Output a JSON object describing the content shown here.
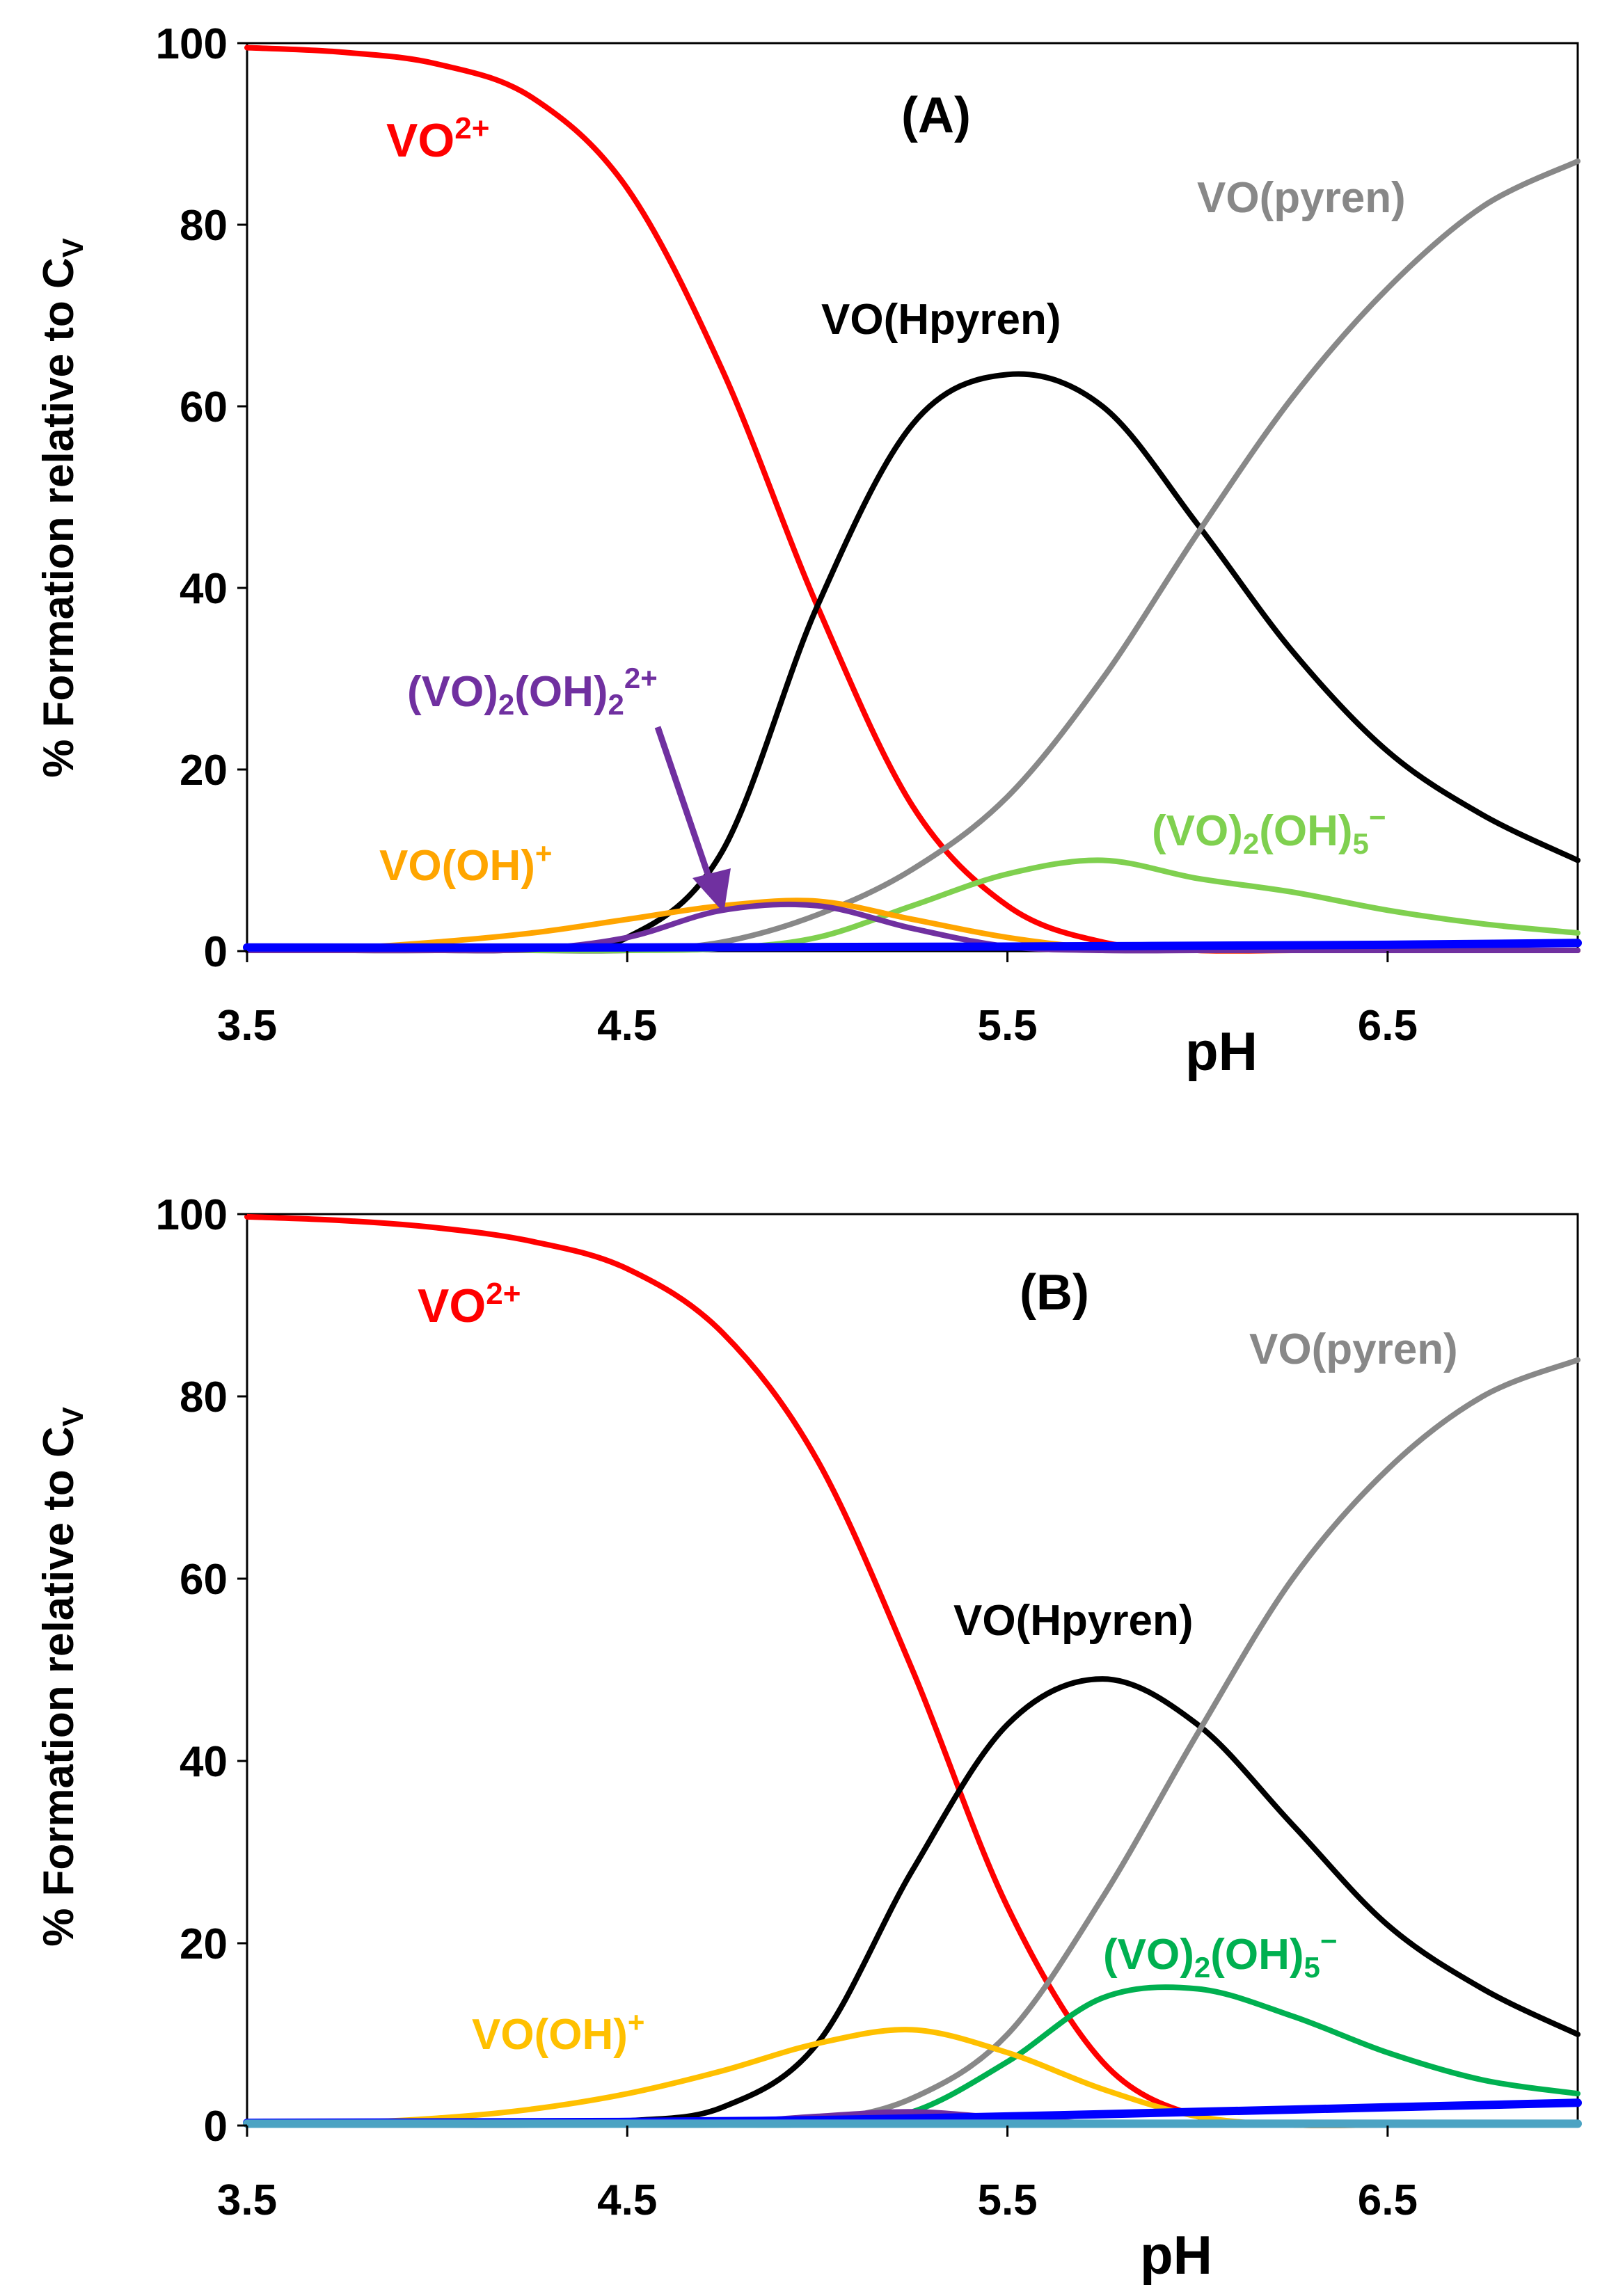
{
  "chart_data": [
    {
      "type": "line",
      "title": "(A)",
      "xlabel": "pH",
      "ylabel": "% Formation relative to C",
      "ylabel_subscript": "V",
      "xlim": [
        3.5,
        7.0
      ],
      "ylim": [
        0,
        100
      ],
      "xticks": [
        "3.5",
        "4.5",
        "5.5",
        "6.5"
      ],
      "yticks": [
        "0",
        "20",
        "40",
        "60",
        "80",
        "100"
      ],
      "series": [
        {
          "name": "VO2+",
          "label_main": "VO",
          "label_sup": "2+",
          "color": "#ff0000",
          "x": [
            3.5,
            3.75,
            4.0,
            4.25,
            4.5,
            4.75,
            5.0,
            5.25,
            5.5,
            5.75,
            6.0,
            6.25,
            6.5,
            6.75,
            7.0
          ],
          "y": [
            99.5,
            99,
            97.7,
            94,
            84,
            64,
            38,
            16,
            5,
            1,
            0,
            0,
            0,
            0,
            0
          ]
        },
        {
          "name": "VO(Hpyren)",
          "label_main": "VO(Hpyren)",
          "color": "#000000",
          "x": [
            3.5,
            3.75,
            4.0,
            4.25,
            4.5,
            4.75,
            5.0,
            5.25,
            5.5,
            5.75,
            6.0,
            6.25,
            6.5,
            6.75,
            7.0
          ],
          "y": [
            0,
            0,
            0,
            0.2,
            1.5,
            11,
            38,
            58,
            63.5,
            60,
            47,
            33,
            22,
            15,
            10
          ]
        },
        {
          "name": "VO(pyren)",
          "label_main": "VO(pyren)",
          "color": "#888888",
          "x": [
            3.5,
            3.75,
            4.0,
            4.25,
            4.5,
            4.75,
            5.0,
            5.25,
            5.5,
            5.75,
            6.0,
            6.25,
            6.5,
            6.75,
            7.0
          ],
          "y": [
            0,
            0,
            0,
            0,
            0,
            1,
            4,
            9,
            17,
            30,
            46,
            61,
            73,
            82,
            87
          ]
        },
        {
          "name": "(VO)2(OH)5-",
          "label_main": "(VO)",
          "label_sub": "2",
          "label_mid": "(OH)",
          "label_sub2": "5",
          "label_sup": "−",
          "color": "#7fd04f",
          "x": [
            3.5,
            3.75,
            4.0,
            4.25,
            4.5,
            4.75,
            5.0,
            5.25,
            5.5,
            5.75,
            6.0,
            6.25,
            6.5,
            6.75,
            7.0
          ],
          "y": [
            0,
            0,
            0,
            0,
            0,
            0.3,
            1.5,
            5,
            8.5,
            10,
            8,
            6.5,
            4.5,
            3,
            2
          ]
        },
        {
          "name": "VO(OH)+",
          "label_main": "VO(OH)",
          "label_sup": "+",
          "color": "#ffa500",
          "x": [
            3.5,
            3.75,
            4.0,
            4.25,
            4.5,
            4.75,
            5.0,
            5.25,
            5.5,
            5.75,
            6.0,
            6.25,
            6.5,
            6.75,
            7.0
          ],
          "y": [
            0,
            0.3,
            1,
            2,
            3.5,
            5,
            5.5,
            3.5,
            1.5,
            0.3,
            0,
            0,
            0,
            0,
            0
          ]
        },
        {
          "name": "(VO)2(OH)2 2+",
          "label_main": "(VO)",
          "label_sub": "2",
          "label_mid": "(OH)",
          "label_sub2": "2",
          "label_sup": "2+",
          "color": "#7030a0",
          "x": [
            3.5,
            3.75,
            4.0,
            4.25,
            4.5,
            4.75,
            5.0,
            5.25,
            5.5,
            5.75,
            6.0,
            6.25,
            6.5,
            6.75,
            7.0
          ],
          "y": [
            0,
            0,
            0,
            0.2,
            1.5,
            4.5,
            5,
            2.5,
            0.5,
            0,
            0,
            0,
            0,
            0,
            0
          ]
        },
        {
          "name": "blue baseline",
          "color": "#0000ff",
          "x": [
            3.5,
            4.5,
            5.5,
            6.5,
            7.0
          ],
          "y": [
            0.4,
            0.4,
            0.5,
            0.7,
            0.9
          ]
        }
      ]
    },
    {
      "type": "line",
      "title": "(B)",
      "xlabel": "pH",
      "ylabel": "% Formation relative to C",
      "ylabel_subscript": "V",
      "xlim": [
        3.5,
        7.0
      ],
      "ylim": [
        0,
        100
      ],
      "xticks": [
        "3.5",
        "4.5",
        "5.5",
        "6.5"
      ],
      "yticks": [
        "0",
        "20",
        "40",
        "60",
        "80",
        "100"
      ],
      "series": [
        {
          "name": "VO2+",
          "label_main": "VO",
          "label_sup": "2+",
          "color": "#ff0000",
          "x": [
            3.5,
            3.75,
            4.0,
            4.25,
            4.5,
            4.75,
            5.0,
            5.25,
            5.5,
            5.75,
            6.0,
            6.25,
            6.5,
            6.75,
            7.0
          ],
          "y": [
            99.7,
            99.3,
            98.5,
            97,
            94,
            87,
            73,
            50,
            24,
            7,
            1,
            0,
            0,
            0,
            0
          ]
        },
        {
          "name": "VO(Hpyren)",
          "label_main": "VO(Hpyren)",
          "color": "#000000",
          "x": [
            3.5,
            3.75,
            4.0,
            4.25,
            4.5,
            4.75,
            5.0,
            5.25,
            5.5,
            5.75,
            6.0,
            6.25,
            6.5,
            6.75,
            7.0
          ],
          "y": [
            0,
            0,
            0,
            0,
            0.5,
            2,
            9,
            28,
            44,
            49,
            44,
            33,
            22,
            15,
            10
          ]
        },
        {
          "name": "VO(pyren)",
          "label_main": "VO(pyren)",
          "color": "#888888",
          "x": [
            3.5,
            3.75,
            4.0,
            4.25,
            4.5,
            4.75,
            5.0,
            5.25,
            5.5,
            5.75,
            6.0,
            6.25,
            6.5,
            6.75,
            7.0
          ],
          "y": [
            0,
            0,
            0,
            0,
            0,
            0,
            0.5,
            3,
            10,
            25,
            43,
            60,
            72,
            80,
            84
          ]
        },
        {
          "name": "(VO)2(OH)5-",
          "label_main": "(VO)",
          "label_sub": "2",
          "label_mid": "(OH)",
          "label_sub2": "5",
          "label_sup": "−",
          "color": "#00b050",
          "x": [
            3.5,
            3.75,
            4.0,
            4.25,
            4.5,
            4.75,
            5.0,
            5.25,
            5.5,
            5.75,
            6.0,
            6.25,
            6.5,
            6.75,
            7.0
          ],
          "y": [
            0,
            0,
            0,
            0,
            0,
            0,
            0.2,
            1.5,
            7,
            14,
            15,
            12,
            8,
            5,
            3.5
          ]
        },
        {
          "name": "VO(OH)+",
          "label_main": "VO(OH)",
          "label_sup": "+",
          "color": "#ffc000",
          "x": [
            3.5,
            3.75,
            4.0,
            4.25,
            4.5,
            4.75,
            5.0,
            5.25,
            5.5,
            5.75,
            6.0,
            6.25,
            6.5,
            6.75,
            7.0
          ],
          "y": [
            0,
            0.3,
            0.8,
            1.8,
            3.5,
            6,
            9,
            10.5,
            8,
            4,
            1,
            0,
            0,
            0,
            0
          ]
        },
        {
          "name": "(VO)2(OH)2 2+",
          "color": "#7030a0",
          "x": [
            3.5,
            4.5,
            4.75,
            5.0,
            5.25,
            5.5,
            5.75,
            6.0,
            7.0
          ],
          "y": [
            0,
            0,
            0.3,
            1,
            1.5,
            0.8,
            0.2,
            0,
            0
          ]
        },
        {
          "name": "blue baseline",
          "color": "#0000ff",
          "x": [
            3.5,
            4.5,
            5.0,
            5.5,
            6.0,
            6.5,
            7.0
          ],
          "y": [
            0.3,
            0.4,
            0.6,
            1,
            1.5,
            2,
            2.5
          ]
        },
        {
          "name": "teal baseline",
          "color": "#4ba3c3",
          "x": [
            3.5,
            7.0
          ],
          "y": [
            0.2,
            0.2
          ]
        }
      ]
    }
  ]
}
